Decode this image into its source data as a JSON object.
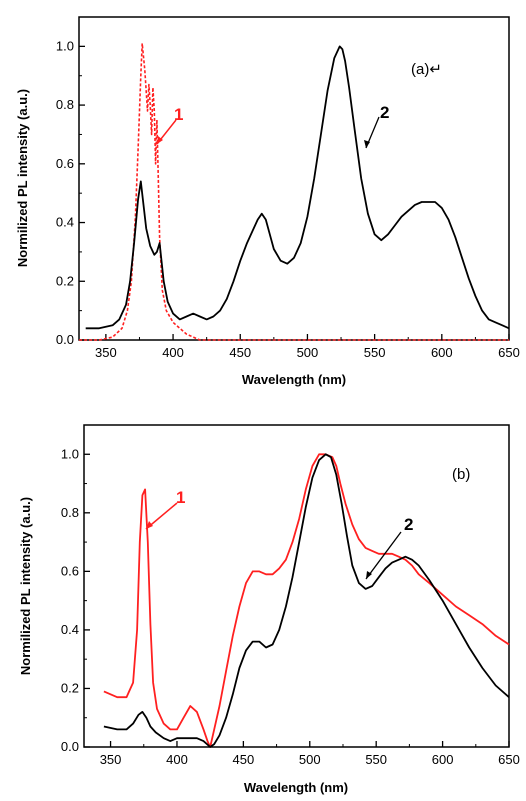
{
  "chart_data": [
    {
      "id": "a",
      "type": "line",
      "panel_label": "(a)↵",
      "xlabel": "Wavelength (nm)",
      "ylabel": "Normilized PL intensity (a.u.)",
      "xlim": [
        330,
        650
      ],
      "ylim": [
        0,
        1.1
      ],
      "x_ticks": [
        "350",
        "400",
        "450",
        "500",
        "550",
        "600",
        "650"
      ],
      "y_ticks": [
        "0.0",
        "0.2",
        "0.4",
        "0.6",
        "0.8",
        "1.0"
      ],
      "grid": false,
      "series": [
        {
          "name": "1",
          "color": "#ff2020",
          "style": "dashed",
          "x": [
            330,
            345,
            355,
            362,
            366,
            369,
            372,
            374,
            376,
            377,
            379,
            381,
            382,
            383,
            384,
            385,
            386,
            387,
            388,
            389,
            390,
            392,
            395,
            400,
            405,
            410,
            415,
            420,
            430,
            450,
            500,
            550,
            600,
            650
          ],
          "y": [
            0.0,
            0.0,
            0.01,
            0.04,
            0.1,
            0.2,
            0.42,
            0.65,
            0.9,
            1.01,
            0.92,
            0.78,
            0.87,
            0.8,
            0.7,
            0.86,
            0.78,
            0.6,
            0.75,
            0.55,
            0.35,
            0.17,
            0.1,
            0.06,
            0.04,
            0.02,
            0.01,
            0.0,
            0.0,
            0.0,
            0.0,
            0.0,
            0.0,
            0.0
          ]
        },
        {
          "name": "2",
          "color": "#000000",
          "style": "solid",
          "x": [
            335,
            345,
            355,
            360,
            365,
            368,
            371,
            374,
            376,
            378,
            380,
            383,
            386,
            388,
            390,
            393,
            396,
            400,
            405,
            410,
            415,
            420,
            425,
            430,
            435,
            440,
            445,
            450,
            455,
            460,
            463,
            466,
            469,
            472,
            475,
            480,
            485,
            490,
            495,
            500,
            505,
            510,
            515,
            520,
            524,
            526,
            528,
            531,
            535,
            540,
            545,
            550,
            555,
            560,
            565,
            570,
            575,
            580,
            585,
            590,
            595,
            600,
            605,
            610,
            615,
            620,
            625,
            630,
            635,
            640,
            645,
            650
          ],
          "y": [
            0.04,
            0.04,
            0.05,
            0.07,
            0.12,
            0.2,
            0.33,
            0.48,
            0.54,
            0.46,
            0.38,
            0.32,
            0.29,
            0.3,
            0.33,
            0.2,
            0.13,
            0.09,
            0.07,
            0.08,
            0.09,
            0.08,
            0.07,
            0.08,
            0.1,
            0.14,
            0.2,
            0.27,
            0.33,
            0.38,
            0.41,
            0.43,
            0.41,
            0.36,
            0.31,
            0.27,
            0.26,
            0.28,
            0.33,
            0.42,
            0.55,
            0.7,
            0.85,
            0.96,
            1.0,
            0.99,
            0.95,
            0.86,
            0.72,
            0.55,
            0.43,
            0.36,
            0.34,
            0.36,
            0.39,
            0.42,
            0.44,
            0.46,
            0.47,
            0.47,
            0.47,
            0.45,
            0.41,
            0.35,
            0.28,
            0.21,
            0.15,
            0.1,
            0.07,
            0.06,
            0.05,
            0.04
          ]
        }
      ],
      "annotations": [
        {
          "text": "1",
          "color": "#ff2020"
        },
        {
          "text": "2",
          "color": "#000000"
        }
      ]
    },
    {
      "id": "b",
      "type": "line",
      "panel_label": "(b)",
      "xlabel": "Wavelength (nm)",
      "ylabel": "Normilized PL intensity (a.u.)",
      "xlim": [
        330,
        650
      ],
      "ylim": [
        0,
        1.1
      ],
      "x_ticks": [
        "350",
        "400",
        "450",
        "500",
        "550",
        "600",
        "650"
      ],
      "y_ticks": [
        "0.0",
        "0.2",
        "0.4",
        "0.6",
        "0.8",
        "1.0"
      ],
      "grid": false,
      "series": [
        {
          "name": "1",
          "color": "#ff2020",
          "style": "solid",
          "x": [
            345,
            355,
            362,
            367,
            370,
            372,
            374,
            376,
            378,
            380,
            382,
            385,
            390,
            395,
            400,
            405,
            410,
            415,
            420,
            423,
            425,
            428,
            432,
            437,
            442,
            447,
            452,
            457,
            462,
            467,
            472,
            477,
            482,
            487,
            492,
            497,
            502,
            507,
            512,
            517,
            520,
            523,
            527,
            532,
            537,
            542,
            547,
            552,
            557,
            562,
            567,
            572,
            577,
            582,
            590,
            600,
            610,
            620,
            630,
            640,
            650
          ],
          "y": [
            0.19,
            0.17,
            0.17,
            0.22,
            0.4,
            0.7,
            0.86,
            0.88,
            0.7,
            0.42,
            0.22,
            0.13,
            0.08,
            0.06,
            0.06,
            0.1,
            0.14,
            0.12,
            0.06,
            0.02,
            0.0,
            0.06,
            0.14,
            0.26,
            0.38,
            0.48,
            0.56,
            0.6,
            0.6,
            0.59,
            0.59,
            0.61,
            0.64,
            0.7,
            0.78,
            0.88,
            0.96,
            1.0,
            1.0,
            0.99,
            0.96,
            0.9,
            0.83,
            0.76,
            0.71,
            0.68,
            0.67,
            0.66,
            0.66,
            0.66,
            0.65,
            0.64,
            0.62,
            0.59,
            0.56,
            0.52,
            0.48,
            0.45,
            0.42,
            0.38,
            0.35
          ]
        },
        {
          "name": "2",
          "color": "#000000",
          "style": "solid",
          "x": [
            345,
            355,
            362,
            367,
            371,
            374,
            377,
            380,
            384,
            390,
            395,
            400,
            405,
            410,
            415,
            420,
            425,
            428,
            432,
            437,
            442,
            447,
            452,
            457,
            462,
            467,
            472,
            477,
            482,
            487,
            492,
            497,
            502,
            507,
            512,
            516,
            520,
            524,
            528,
            532,
            537,
            542,
            547,
            552,
            557,
            562,
            567,
            572,
            577,
            582,
            590,
            600,
            610,
            620,
            630,
            640,
            650
          ],
          "y": [
            0.07,
            0.06,
            0.06,
            0.08,
            0.11,
            0.12,
            0.1,
            0.07,
            0.05,
            0.03,
            0.02,
            0.03,
            0.03,
            0.03,
            0.03,
            0.02,
            0.0,
            0.01,
            0.04,
            0.1,
            0.18,
            0.27,
            0.33,
            0.36,
            0.36,
            0.34,
            0.35,
            0.4,
            0.48,
            0.58,
            0.7,
            0.82,
            0.92,
            0.98,
            1.0,
            0.99,
            0.93,
            0.83,
            0.72,
            0.62,
            0.56,
            0.54,
            0.55,
            0.58,
            0.61,
            0.63,
            0.64,
            0.65,
            0.64,
            0.62,
            0.57,
            0.5,
            0.42,
            0.34,
            0.27,
            0.21,
            0.17
          ]
        }
      ],
      "annotations": [
        {
          "text": "1",
          "color": "#ff2020"
        },
        {
          "text": "2",
          "color": "#000000"
        }
      ]
    }
  ]
}
